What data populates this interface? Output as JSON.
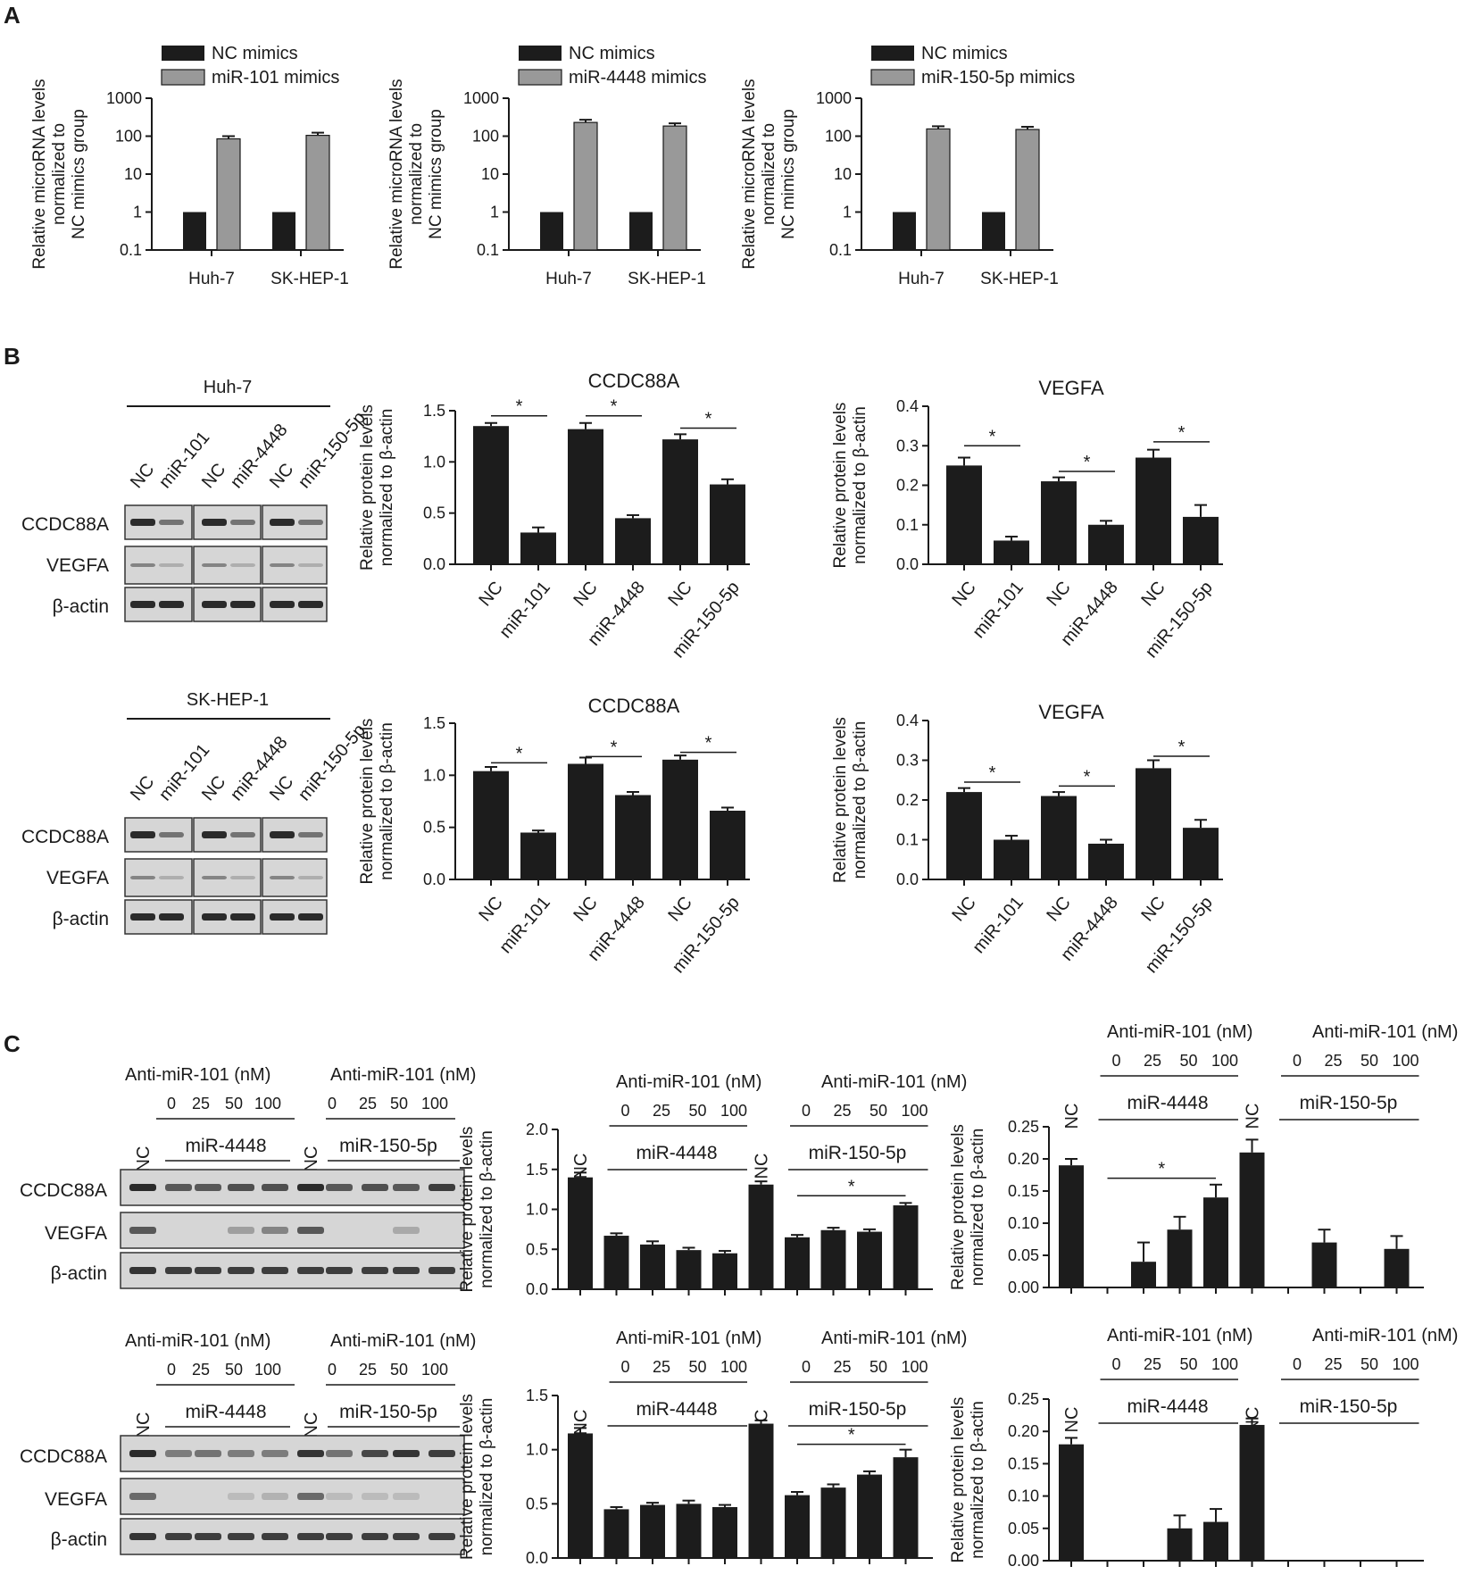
{
  "panels": {
    "A": "A",
    "B": "B",
    "C": "C"
  },
  "colors": {
    "dark_bar": "#1c1c1c",
    "gray_bar": "#999999",
    "blot_bg": "#d6d6d6"
  },
  "panelA": {
    "ylabel_lines": [
      "Relative microRNA levels",
      "normalized to",
      "NC mimics group"
    ],
    "categories": [
      "Huh-7",
      "SK-HEP-1"
    ],
    "ticks": [
      "1000",
      "100",
      "10",
      "1",
      "0.1"
    ],
    "charts": [
      {
        "legend": [
          "NC mimics",
          "miR-101 mimics"
        ]
      },
      {
        "legend": [
          "NC mimics",
          "miR-4448 mimics"
        ]
      },
      {
        "legend": [
          "NC mimics",
          "miR-150-5p mimics"
        ]
      }
    ]
  },
  "panelB": {
    "ylabel_lines": [
      "Relative protein levels",
      "normalized to β-actin"
    ],
    "categories": [
      "NC",
      "miR-101",
      "NC",
      "miR-4448",
      "NC",
      "miR-150-5p"
    ],
    "star": "*",
    "blots": [
      {
        "cell_line": "Huh-7",
        "lanes": [
          "NC",
          "miR-101",
          "NC",
          "miR-4448",
          "NC",
          "miR-150-5p"
        ],
        "rows": [
          "CCDC88A",
          "VEGFA",
          "β-actin"
        ]
      },
      {
        "cell_line": "SK-HEP-1",
        "lanes": [
          "NC",
          "miR-101",
          "NC",
          "miR-4448",
          "NC",
          "miR-150-5p"
        ],
        "rows": [
          "CCDC88A",
          "VEGFA",
          "β-actin"
        ]
      }
    ],
    "chart_titles": [
      "CCDC88A",
      "VEGFA",
      "CCDC88A",
      "VEGFA"
    ],
    "ticks_ccdc": [
      "1.5",
      "1.0",
      "0.5",
      "0.0"
    ],
    "ticks_vegfa": [
      "0.4",
      "0.3",
      "0.2",
      "0.1",
      "0.0"
    ]
  },
  "panelC": {
    "ylabel_lines": [
      "Relative protein levels",
      "normalized to β-actin"
    ],
    "anti": "Anti-miR-101 (nM)",
    "doses": [
      "0",
      "25",
      "50",
      "100"
    ],
    "nc": "NC",
    "groups": [
      "miR-4448",
      "miR-150-5p"
    ],
    "rows": [
      "CCDC88A",
      "VEGFA",
      "β-actin"
    ],
    "star": "*",
    "ticks_ccdc_top": [
      "2.0",
      "1.5",
      "1.0",
      "0.5",
      "0.0"
    ],
    "ticks_ccdc_bottom": [
      "1.5",
      "1.0",
      "0.5",
      "0.0"
    ],
    "ticks_vegfa": [
      "0.25",
      "0.20",
      "0.15",
      "0.10",
      "0.05",
      "0.00"
    ]
  },
  "chart_data": [
    {
      "type": "bar",
      "panel": "A",
      "scale": "log",
      "ylim": [
        0.1,
        1000
      ],
      "categories": [
        "Huh-7",
        "SK-HEP-1"
      ],
      "series": [
        {
          "name": "NC mimics",
          "values": [
            1,
            1
          ]
        },
        {
          "name": "miR-101 mimics",
          "values": [
            85,
            105
          ]
        }
      ]
    },
    {
      "type": "bar",
      "panel": "A",
      "scale": "log",
      "ylim": [
        0.1,
        1000
      ],
      "categories": [
        "Huh-7",
        "SK-HEP-1"
      ],
      "series": [
        {
          "name": "NC mimics",
          "values": [
            1,
            1
          ]
        },
        {
          "name": "miR-4448 mimics",
          "values": [
            230,
            185
          ]
        }
      ]
    },
    {
      "type": "bar",
      "panel": "A",
      "scale": "log",
      "ylim": [
        0.1,
        1000
      ],
      "categories": [
        "Huh-7",
        "SK-HEP-1"
      ],
      "series": [
        {
          "name": "NC mimics",
          "values": [
            1,
            1
          ]
        },
        {
          "name": "miR-150-5p mimics",
          "values": [
            155,
            150
          ]
        }
      ]
    },
    {
      "type": "bar",
      "panel": "B",
      "title": "CCDC88A",
      "ylim": [
        0,
        1.5
      ],
      "categories": [
        "NC",
        "miR-101",
        "NC",
        "miR-4448",
        "NC",
        "miR-150-5p"
      ],
      "values": [
        1.35,
        0.31,
        1.32,
        0.45,
        1.22,
        0.78
      ],
      "errors": [
        0.03,
        0.05,
        0.06,
        0.03,
        0.05,
        0.05
      ]
    },
    {
      "type": "bar",
      "panel": "B",
      "title": "VEGFA",
      "ylim": [
        0,
        0.4
      ],
      "categories": [
        "NC",
        "miR-101",
        "NC",
        "miR-4448",
        "NC",
        "miR-150-5p"
      ],
      "values": [
        0.25,
        0.06,
        0.21,
        0.1,
        0.27,
        0.12
      ],
      "errors": [
        0.02,
        0.01,
        0.01,
        0.01,
        0.02,
        0.03
      ]
    },
    {
      "type": "bar",
      "panel": "B",
      "title": "CCDC88A",
      "ylim": [
        0,
        1.5
      ],
      "categories": [
        "NC",
        "miR-101",
        "NC",
        "miR-4448",
        "NC",
        "miR-150-5p"
      ],
      "values": [
        1.04,
        0.45,
        1.11,
        0.81,
        1.15,
        0.66
      ],
      "errors": [
        0.04,
        0.02,
        0.06,
        0.03,
        0.04,
        0.03
      ]
    },
    {
      "type": "bar",
      "panel": "B",
      "title": "VEGFA",
      "ylim": [
        0,
        0.4
      ],
      "categories": [
        "NC",
        "miR-101",
        "NC",
        "miR-4448",
        "NC",
        "miR-150-5p"
      ],
      "values": [
        0.22,
        0.1,
        0.21,
        0.09,
        0.28,
        0.13
      ],
      "errors": [
        0.01,
        0.01,
        0.01,
        0.01,
        0.02,
        0.02
      ]
    },
    {
      "type": "bar",
      "panel": "C",
      "ylim": [
        0,
        2.0
      ],
      "values": [
        1.4,
        0.67,
        0.56,
        0.49,
        0.45,
        1.31,
        0.65,
        0.74,
        0.72,
        1.05
      ],
      "errors": [
        0.06,
        0.03,
        0.04,
        0.03,
        0.03,
        0.04,
        0.03,
        0.03,
        0.03,
        0.03
      ]
    },
    {
      "type": "bar",
      "panel": "C",
      "ylim": [
        0,
        0.25
      ],
      "values": [
        0.19,
        0,
        0.04,
        0.09,
        0.14,
        0.21,
        0,
        0.07,
        0,
        0.06
      ],
      "errors": [
        0.01,
        0,
        0.03,
        0.02,
        0.02,
        0.02,
        0,
        0.02,
        0,
        0.02
      ]
    },
    {
      "type": "bar",
      "panel": "C",
      "ylim": [
        0,
        1.5
      ],
      "values": [
        1.15,
        0.45,
        0.49,
        0.5,
        0.47,
        1.24,
        0.58,
        0.65,
        0.77,
        0.93
      ],
      "errors": [
        0.05,
        0.02,
        0.02,
        0.03,
        0.02,
        0.03,
        0.03,
        0.03,
        0.03,
        0.07
      ]
    },
    {
      "type": "bar",
      "panel": "C",
      "ylim": [
        0,
        0.25
      ],
      "values": [
        0.18,
        0,
        0,
        0.05,
        0.06,
        0.21,
        0,
        0,
        0,
        0
      ],
      "errors": [
        0.01,
        0,
        0,
        0.02,
        0.02,
        0.01,
        0,
        0,
        0,
        0
      ]
    }
  ]
}
